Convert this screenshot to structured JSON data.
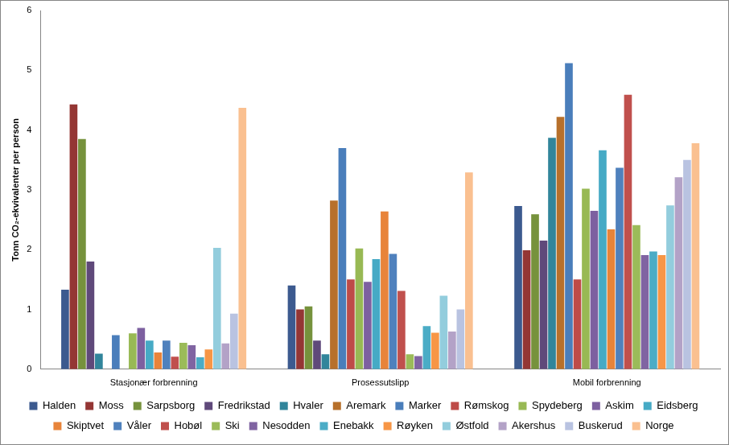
{
  "chart_data": {
    "type": "bar",
    "y_label": "Tonn CO₂-ekvivalenter per person",
    "categories": [
      "Stasjonær forbrenning",
      "Prosessutslipp",
      "Mobil forbrenning"
    ],
    "ylim": [
      0,
      6
    ],
    "yticks": [
      0,
      1,
      2,
      3,
      4,
      5,
      6
    ],
    "grid": false,
    "legend": "bottom",
    "series": [
      {
        "name": "Halden",
        "color": "#3C5A8F",
        "values": [
          1.33,
          1.4,
          2.73
        ]
      },
      {
        "name": "Moss",
        "color": "#943634",
        "values": [
          4.43,
          1.0,
          1.99
        ]
      },
      {
        "name": "Sarpsborg",
        "color": "#76923C",
        "values": [
          3.85,
          1.05,
          2.59
        ]
      },
      {
        "name": "Fredrikstad",
        "color": "#5F497A",
        "values": [
          1.8,
          0.48,
          2.15
        ]
      },
      {
        "name": "Hvaler",
        "color": "#31859B",
        "values": [
          0.26,
          0.25,
          3.87
        ]
      },
      {
        "name": "Aremark",
        "color": "#B7702B",
        "values": [
          0,
          2.82,
          4.22
        ]
      },
      {
        "name": "Marker",
        "color": "#4A7EBB",
        "values": [
          0.57,
          3.7,
          5.12
        ]
      },
      {
        "name": "Rømskog",
        "color": "#BE4B48",
        "values": [
          0,
          1.5,
          1.5
        ]
      },
      {
        "name": "Spydeberg",
        "color": "#98B954",
        "values": [
          0.6,
          2.02,
          3.02
        ]
      },
      {
        "name": "Askim",
        "color": "#7D60A0",
        "values": [
          0.69,
          1.46,
          2.65
        ]
      },
      {
        "name": "Eidsberg",
        "color": "#46AAC5",
        "values": [
          0.48,
          1.84,
          3.66
        ]
      },
      {
        "name": "Skiptvet",
        "color": "#E8843A",
        "values": [
          0.28,
          2.64,
          2.34
        ]
      },
      {
        "name": "Våler",
        "color": "#4F81BD",
        "values": [
          0.48,
          1.93,
          3.37
        ]
      },
      {
        "name": "Hobøl",
        "color": "#C0504D",
        "values": [
          0.21,
          1.31,
          4.59
        ]
      },
      {
        "name": "Ski",
        "color": "#9BBB59",
        "values": [
          0.44,
          0.25,
          2.41
        ]
      },
      {
        "name": "Nesodden",
        "color": "#8064A2",
        "values": [
          0.4,
          0.22,
          1.91
        ]
      },
      {
        "name": "Enebakk",
        "color": "#4BACC6",
        "values": [
          0.2,
          0.72,
          1.97
        ]
      },
      {
        "name": "Røyken",
        "color": "#F79646",
        "values": [
          0.33,
          0.61,
          1.91
        ]
      },
      {
        "name": "Østfold",
        "color": "#93CDDD",
        "values": [
          2.03,
          1.23,
          2.74
        ]
      },
      {
        "name": "Akershus",
        "color": "#B3A2C7",
        "values": [
          0.43,
          0.63,
          3.21
        ]
      },
      {
        "name": "Buskerud",
        "color": "#B9C3E1",
        "values": [
          0.93,
          1.0,
          3.5
        ]
      },
      {
        "name": "Norge",
        "color": "#FAC090",
        "values": [
          4.37,
          3.29,
          3.78
        ]
      }
    ]
  }
}
